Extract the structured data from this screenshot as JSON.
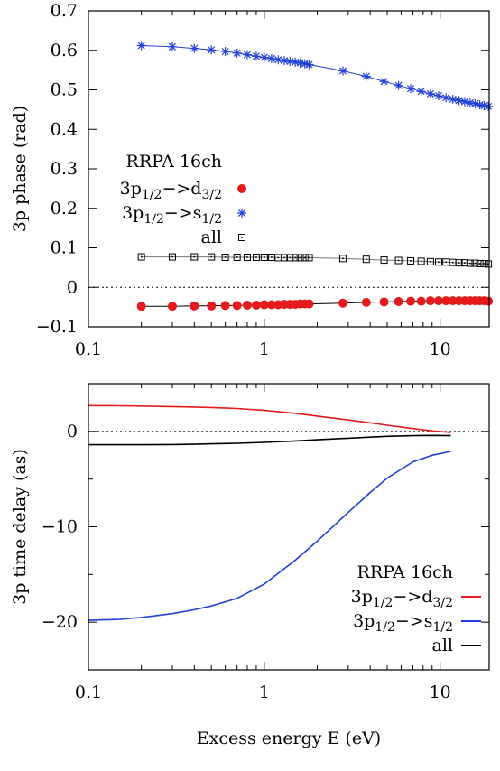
{
  "chart_data": [
    {
      "type": "scatter",
      "ylabel": "3p phase (rad)",
      "xlabel": "",
      "xscale": "log",
      "xlim": [
        0.1,
        19
      ],
      "ylim": [
        -0.1,
        0.7
      ],
      "xticks": [
        0.1,
        1,
        10
      ],
      "xtick_labels": [
        "0.1",
        "1",
        "10"
      ],
      "yticks": [
        -0.1,
        0,
        0.1,
        0.2,
        0.3,
        0.4,
        0.5,
        0.6,
        0.7
      ],
      "ytick_labels": [
        "−0.1",
        "0",
        "0.1",
        "0.2",
        "0.3",
        "0.4",
        "0.5",
        "0.6",
        "0.7"
      ],
      "zero_line": true,
      "legend": {
        "title": "RRPA 16ch",
        "placement": "left-center",
        "entries": [
          {
            "base": "3p",
            "sub1": "1/2",
            "arrow": "−>",
            "final": "d",
            "sub2": "3/2",
            "marker": "filled-circle",
            "color": "#e41a1c"
          },
          {
            "base": "3p",
            "sub1": "1/2",
            "arrow": "−>",
            "final": "s",
            "sub2": "1/2",
            "marker": "star",
            "color": "#1f3fd6"
          },
          {
            "label": "all",
            "marker": "open-square",
            "color": "#000000"
          }
        ]
      },
      "x": [
        0.2,
        0.3,
        0.4,
        0.5,
        0.6,
        0.7,
        0.8,
        0.9,
        1.0,
        1.1,
        1.2,
        1.3,
        1.4,
        1.5,
        1.6,
        1.7,
        1.8,
        2.8,
        3.8,
        4.8,
        5.8,
        6.8,
        7.8,
        8.8,
        9.8,
        10.8,
        11.8,
        12.8,
        13.8,
        14.8,
        15.8,
        16.8,
        17.8,
        18.8
      ],
      "series": [
        {
          "color": "#1f3fd6",
          "marker": "star",
          "values": [
            0.612,
            0.609,
            0.605,
            0.601,
            0.597,
            0.593,
            0.589,
            0.585,
            0.582,
            0.579,
            0.576,
            0.574,
            0.572,
            0.57,
            0.568,
            0.566,
            0.564,
            0.548,
            0.534,
            0.521,
            0.511,
            0.503,
            0.496,
            0.49,
            0.485,
            0.48,
            0.476,
            0.473,
            0.47,
            0.467,
            0.465,
            0.462,
            0.46,
            0.458
          ]
        },
        {
          "color": "#000000",
          "marker": "open-square",
          "values": [
            0.077,
            0.077,
            0.077,
            0.077,
            0.076,
            0.076,
            0.076,
            0.076,
            0.076,
            0.076,
            0.075,
            0.075,
            0.075,
            0.075,
            0.075,
            0.075,
            0.075,
            0.073,
            0.071,
            0.069,
            0.068,
            0.067,
            0.066,
            0.065,
            0.064,
            0.064,
            0.063,
            0.062,
            0.062,
            0.061,
            0.061,
            0.06,
            0.06,
            0.059
          ]
        },
        {
          "color": "#e41a1c",
          "marker": "filled-circle",
          "values": [
            -0.048,
            -0.048,
            -0.047,
            -0.047,
            -0.046,
            -0.046,
            -0.045,
            -0.045,
            -0.044,
            -0.044,
            -0.044,
            -0.043,
            -0.043,
            -0.043,
            -0.042,
            -0.042,
            -0.042,
            -0.04,
            -0.038,
            -0.037,
            -0.036,
            -0.035,
            -0.035,
            -0.034,
            -0.034,
            -0.034,
            -0.034,
            -0.034,
            -0.034,
            -0.034,
            -0.034,
            -0.034,
            -0.034,
            -0.035
          ]
        }
      ]
    },
    {
      "type": "line",
      "ylabel": "3p time delay (as)",
      "xlabel": "Excess energy E (eV)",
      "xscale": "log",
      "xlim": [
        0.1,
        19
      ],
      "ylim": [
        -25,
        5
      ],
      "xticks": [
        0.1,
        1,
        10
      ],
      "xtick_labels": [
        "0.1",
        "1",
        "10"
      ],
      "yticks": [
        -20,
        -10,
        0
      ],
      "ytick_labels": [
        "−20",
        "−10",
        "0"
      ],
      "minor_yticks": [
        -25,
        -15,
        -5,
        5
      ],
      "zero_line": true,
      "legend": {
        "title": "RRPA 16ch",
        "placement": "bottom-right",
        "entries": [
          {
            "base": "3p",
            "sub1": "1/2",
            "arrow": "−>",
            "final": "d",
            "sub2": "3/2",
            "color": "#e41a1c"
          },
          {
            "base": "3p",
            "sub1": "1/2",
            "arrow": "−>",
            "final": "s",
            "sub2": "1/2",
            "color": "#1f3fd6"
          },
          {
            "label": "all",
            "color": "#000000"
          }
        ]
      },
      "x": [
        0.1,
        0.15,
        0.2,
        0.3,
        0.4,
        0.5,
        0.7,
        1.0,
        1.5,
        2.0,
        3.0,
        4.0,
        5.0,
        7.0,
        9.0,
        11.5
      ],
      "series": [
        {
          "color": "#e41a1c",
          "values": [
            2.7,
            2.68,
            2.65,
            2.6,
            2.55,
            2.5,
            2.4,
            2.2,
            1.9,
            1.6,
            1.2,
            0.9,
            0.65,
            0.3,
            0.05,
            -0.1
          ]
        },
        {
          "color": "#000000",
          "values": [
            -1.4,
            -1.4,
            -1.4,
            -1.38,
            -1.35,
            -1.3,
            -1.25,
            -1.15,
            -1.0,
            -0.88,
            -0.72,
            -0.6,
            -0.52,
            -0.45,
            -0.42,
            -0.45
          ]
        },
        {
          "color": "#1f3fd6",
          "values": [
            -19.8,
            -19.7,
            -19.5,
            -19.1,
            -18.7,
            -18.3,
            -17.5,
            -16.0,
            -13.5,
            -11.5,
            -8.5,
            -6.4,
            -4.9,
            -3.2,
            -2.5,
            -2.1
          ]
        }
      ]
    }
  ]
}
